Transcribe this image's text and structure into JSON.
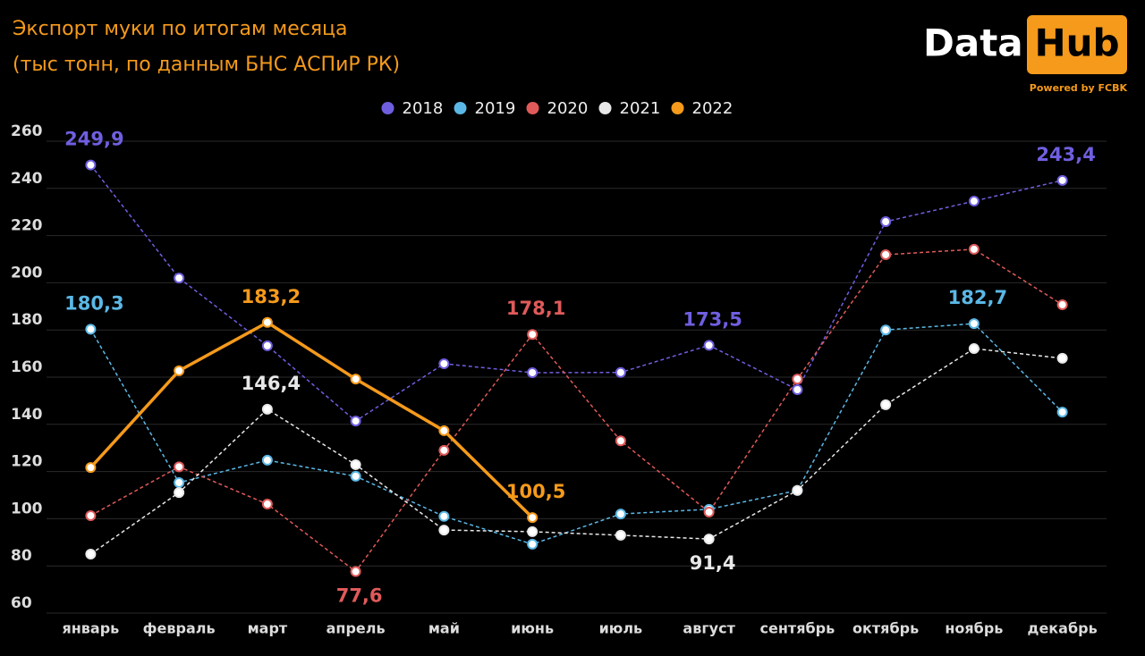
{
  "chart_data": {
    "type": "line",
    "title": [
      "Экспорт муки по итогам месяца",
      "(тыс тонн, по данным БНС АСПиР РК)"
    ],
    "logo": {
      "left": "Data",
      "right": "Hub",
      "tagline": "Powered by FCBK"
    },
    "categories": [
      "январь",
      "февраль",
      "март",
      "апрель",
      "май",
      "июнь",
      "июль",
      "август",
      "сентябрь",
      "октябрь",
      "ноябрь",
      "декабрь"
    ],
    "ylim": [
      60,
      260
    ],
    "yticks": [
      60,
      80,
      100,
      120,
      140,
      160,
      180,
      200,
      220,
      240,
      260
    ],
    "grid": true,
    "legend": "top",
    "series": [
      {
        "name": "2018",
        "color": "#6f5fe0",
        "dashed": true,
        "values": [
          249.9,
          202,
          173.3,
          141.4,
          165.7,
          161.9,
          162,
          173.5,
          154.7,
          225.9,
          234.6,
          243.4
        ],
        "value_labels": [
          "249,9",
          null,
          null,
          null,
          null,
          null,
          null,
          "173,5",
          null,
          null,
          null,
          "243,4"
        ]
      },
      {
        "name": "2019",
        "color": "#5bb8e6",
        "dashed": true,
        "values": [
          180.3,
          115.3,
          124.8,
          118,
          101,
          89.2,
          102,
          104,
          112,
          180,
          182.7,
          145.2
        ],
        "value_labels": [
          "180,3",
          null,
          null,
          null,
          null,
          null,
          null,
          null,
          null,
          null,
          "182,7",
          null
        ]
      },
      {
        "name": "2020",
        "color": "#e05a5a",
        "dashed": true,
        "values": [
          101.3,
          122,
          106.2,
          77.6,
          129,
          178.1,
          133,
          102.8,
          159.2,
          211.9,
          214.2,
          190.7
        ],
        "value_labels": [
          null,
          null,
          null,
          "77,6",
          null,
          "178,1",
          null,
          null,
          null,
          null,
          null,
          null
        ]
      },
      {
        "name": "2021",
        "color": "#e8e8e8",
        "dashed": true,
        "values": [
          85,
          111.1,
          146.4,
          122.9,
          95.2,
          94.5,
          93,
          91.4,
          112,
          148.3,
          172.1,
          168
        ],
        "value_labels": [
          null,
          null,
          "146,4",
          null,
          null,
          null,
          null,
          "91,4",
          null,
          null,
          null,
          null
        ]
      },
      {
        "name": "2022",
        "color": "#f59a1b",
        "dashed": false,
        "values": [
          121.7,
          162.7,
          183.2,
          159.2,
          137.3,
          100.5,
          null,
          null,
          null,
          null,
          null,
          null
        ],
        "value_labels": [
          null,
          null,
          "183,2",
          null,
          null,
          "100,5",
          null,
          null,
          null,
          null,
          null,
          null
        ]
      }
    ]
  }
}
